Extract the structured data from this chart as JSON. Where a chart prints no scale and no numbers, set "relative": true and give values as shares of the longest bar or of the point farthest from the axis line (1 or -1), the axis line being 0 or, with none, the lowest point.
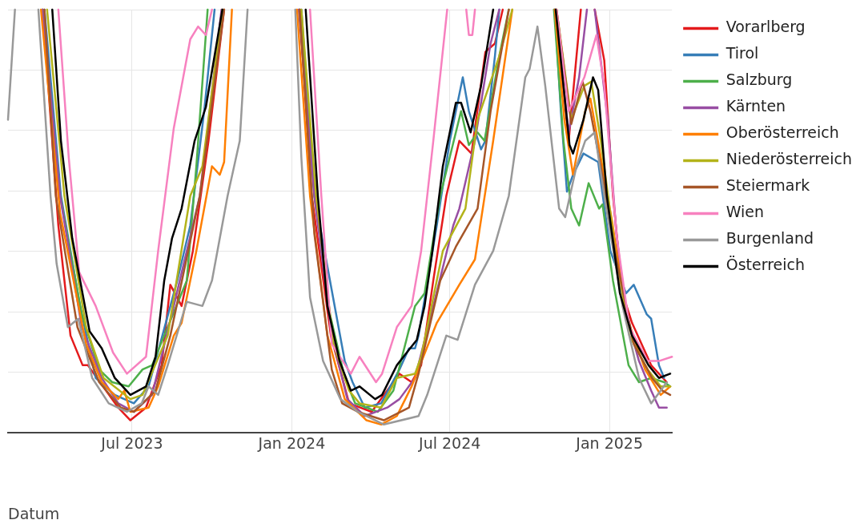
{
  "chart_data": {
    "type": "line",
    "relative": true,
    "xlabel": "Datum",
    "legend": "top right",
    "grid": true,
    "marker": "none",
    "line_style": "solid",
    "xlim": [
      "2023-02-08",
      "2025-03-14"
    ],
    "xticks": [
      {
        "value": "2023-07-01",
        "label": "Jul 2023"
      },
      {
        "value": "2024-01-01",
        "label": "Jan 2024"
      },
      {
        "value": "2024-07-01",
        "label": "Jul 2024"
      },
      {
        "value": "2025-01-01",
        "label": "Jan 2025"
      }
    ],
    "series": [
      {
        "name": "Vorarlberg",
        "color": "#e41a1c",
        "x": [
          "2023-03-20",
          "2023-04-07",
          "2023-04-21",
          "2023-05-05",
          "2023-05-11",
          "2023-06-15",
          "2023-06-29",
          "2023-07-17",
          "2023-08-04",
          "2023-08-14",
          "2023-08-27",
          "2023-09-09",
          "2023-09-27",
          "2023-10-15",
          "2023-12-01",
          "2024-01-10",
          "2024-01-24",
          "2024-02-15",
          "2024-03-07",
          "2024-04-02",
          "2024-05-04",
          "2024-05-18",
          "2024-05-29",
          "2024-06-12",
          "2024-06-27",
          "2024-07-12",
          "2024-07-26",
          "2024-08-11",
          "2024-08-22",
          "2024-08-31",
          "2024-10-01",
          "2024-10-31",
          "2024-11-15",
          "2024-11-24",
          "2024-11-29",
          "2024-12-07",
          "2024-12-15",
          "2024-12-26",
          "2025-01-05",
          "2025-01-16",
          "2025-01-27",
          "2025-02-18",
          "2025-03-08"
        ],
        "values": [
          1.0,
          0.49,
          0.23,
          0.16,
          0.16,
          0.06,
          0.03,
          0.06,
          0.16,
          0.35,
          0.3,
          0.43,
          0.69,
          1.0,
          null,
          1.0,
          0.56,
          0.23,
          0.07,
          0.05,
          0.14,
          0.12,
          0.16,
          0.36,
          0.56,
          0.69,
          0.66,
          0.9,
          0.92,
          1.0,
          null,
          1.0,
          0.69,
          0.89,
          1.0,
          null,
          1.0,
          0.88,
          0.56,
          0.33,
          0.26,
          0.16,
          0.12
        ]
      },
      {
        "name": "Tirol",
        "color": "#377eb8",
        "x": [
          "2023-03-22",
          "2023-04-10",
          "2023-05-02",
          "2023-05-20",
          "2023-06-11",
          "2023-07-03",
          "2023-07-20",
          "2023-08-22",
          "2023-09-06",
          "2023-09-22",
          "2023-10-04",
          "2023-12-01",
          "2024-01-12",
          "2024-01-27",
          "2024-03-02",
          "2024-03-11",
          "2024-03-25",
          "2024-04-13",
          "2024-05-04",
          "2024-05-15",
          "2024-05-22",
          "2024-05-26",
          "2024-06-16",
          "2024-07-01",
          "2024-07-16",
          "2024-07-23",
          "2024-08-06",
          "2024-08-11",
          "2024-08-22",
          "2024-08-27",
          "2024-10-01",
          "2024-10-30",
          "2024-11-06",
          "2024-11-13",
          "2024-11-20",
          "2024-12-02",
          "2024-12-19",
          "2025-01-02",
          "2025-01-20",
          "2025-01-29",
          "2025-02-13",
          "2025-02-18",
          "2025-02-27",
          "2025-03-05"
        ],
        "values": [
          1.0,
          0.56,
          0.3,
          0.13,
          0.09,
          0.07,
          0.11,
          0.36,
          0.49,
          0.76,
          1.0,
          null,
          1.0,
          0.56,
          0.17,
          0.12,
          0.06,
          0.07,
          0.15,
          0.2,
          0.2,
          0.23,
          0.49,
          0.69,
          0.84,
          0.76,
          0.67,
          0.69,
          0.89,
          1.0,
          null,
          1.0,
          0.76,
          0.57,
          0.61,
          0.66,
          0.64,
          0.43,
          0.33,
          0.35,
          0.28,
          0.27,
          0.16,
          0.13
        ]
      },
      {
        "name": "Salzburg",
        "color": "#4daf4a",
        "x": [
          "2023-03-20",
          "2023-04-09",
          "2023-05-04",
          "2023-05-24",
          "2023-06-08",
          "2023-06-27",
          "2023-07-13",
          "2023-07-24",
          "2023-09-02",
          "2023-09-13",
          "2023-09-26",
          "2023-12-01",
          "2024-01-10",
          "2024-01-27",
          "2024-02-14",
          "2024-03-02",
          "2024-03-14",
          "2024-04-09",
          "2024-04-27",
          "2024-05-22",
          "2024-06-02",
          "2024-06-20",
          "2024-07-14",
          "2024-07-23",
          "2024-08-02",
          "2024-08-10",
          "2024-08-27",
          "2024-09-07",
          "2024-10-01",
          "2024-10-29",
          "2024-11-09",
          "2024-11-18",
          "2024-11-27",
          "2024-12-08",
          "2024-12-20",
          "2024-12-24",
          "2025-01-05",
          "2025-01-23",
          "2025-02-04",
          "2025-02-18",
          "2025-03-05",
          "2025-03-12"
        ],
        "values": [
          1.0,
          0.56,
          0.28,
          0.15,
          0.12,
          0.11,
          0.15,
          0.16,
          0.36,
          0.63,
          1.0,
          null,
          1.0,
          0.56,
          0.28,
          0.13,
          0.07,
          0.05,
          0.1,
          0.3,
          0.33,
          0.56,
          0.76,
          0.68,
          0.71,
          0.69,
          0.89,
          1.0,
          null,
          1.0,
          0.69,
          0.53,
          0.49,
          0.59,
          0.53,
          0.54,
          0.36,
          0.16,
          0.12,
          0.13,
          0.12,
          0.11
        ]
      },
      {
        "name": "Kärnten",
        "color": "#984ea3",
        "x": [
          "2023-03-20",
          "2023-04-09",
          "2023-05-04",
          "2023-05-27",
          "2023-06-15",
          "2023-07-03",
          "2023-07-24",
          "2023-08-18",
          "2023-09-17",
          "2023-10-12",
          "2023-12-01",
          "2024-01-09",
          "2024-01-27",
          "2024-02-16",
          "2024-03-05",
          "2024-03-25",
          "2024-04-20",
          "2024-05-04",
          "2024-05-22",
          "2024-06-12",
          "2024-07-05",
          "2024-07-12",
          "2024-07-30",
          "2024-08-17",
          "2024-08-27",
          "2024-10-01",
          "2024-10-30",
          "2024-11-15",
          "2024-11-27",
          "2024-12-06",
          "2024-12-10",
          "2024-12-15",
          "2024-12-30",
          "2025-01-09",
          "2025-01-20",
          "2025-02-04",
          "2025-02-18",
          "2025-02-27",
          "2025-03-08"
        ],
        "values": [
          1.0,
          0.56,
          0.25,
          0.13,
          0.07,
          0.05,
          0.09,
          0.3,
          0.56,
          1.0,
          null,
          1.0,
          0.56,
          0.23,
          0.08,
          0.04,
          0.06,
          0.08,
          0.13,
          0.3,
          0.49,
          0.53,
          0.69,
          0.92,
          1.0,
          null,
          1.0,
          0.71,
          0.84,
          1.0,
          null,
          1.0,
          0.74,
          0.47,
          0.28,
          0.17,
          0.1,
          0.06,
          0.06
        ]
      },
      {
        "name": "Oberösterreich",
        "color": "#ff7f00",
        "x": [
          "2023-03-18",
          "2023-04-09",
          "2023-05-09",
          "2023-05-27",
          "2023-06-15",
          "2023-06-22",
          "2023-06-29",
          "2023-07-20",
          "2023-07-31",
          "2023-08-18",
          "2023-08-27",
          "2023-09-13",
          "2023-10-01",
          "2023-10-10",
          "2023-10-15",
          "2023-10-24",
          "2023-12-01",
          "2024-01-07",
          "2024-01-22",
          "2024-02-11",
          "2024-03-02",
          "2024-03-27",
          "2024-04-13",
          "2024-05-01",
          "2024-05-18",
          "2024-06-16",
          "2024-07-12",
          "2024-07-30",
          "2024-08-20",
          "2024-09-11",
          "2024-10-01",
          "2024-10-30",
          "2024-11-10",
          "2024-11-20",
          "2024-12-04",
          "2024-12-10",
          "2025-01-04",
          "2025-01-20",
          "2025-02-11",
          "2025-03-01",
          "2025-03-12"
        ],
        "values": [
          1.0,
          0.52,
          0.21,
          0.12,
          0.08,
          0.1,
          0.05,
          0.06,
          0.11,
          0.23,
          0.26,
          0.43,
          0.63,
          0.61,
          0.64,
          1.0,
          null,
          1.0,
          0.56,
          0.23,
          0.08,
          0.03,
          0.02,
          0.04,
          0.11,
          0.26,
          0.35,
          0.41,
          0.69,
          1.0,
          null,
          1.0,
          0.74,
          0.61,
          0.76,
          0.79,
          0.5,
          0.28,
          0.15,
          0.09,
          0.11
        ]
      },
      {
        "name": "Niederösterreich",
        "color": "#b3b31a",
        "x": [
          "2023-03-25",
          "2023-04-14",
          "2023-05-09",
          "2023-05-29",
          "2023-06-29",
          "2023-07-13",
          "2023-08-11",
          "2023-09-06",
          "2023-09-20",
          "2023-10-13",
          "2023-12-01",
          "2024-01-12",
          "2024-01-29",
          "2024-02-18",
          "2024-03-07",
          "2024-03-19",
          "2024-04-13",
          "2024-05-01",
          "2024-05-22",
          "2024-05-29",
          "2024-06-23",
          "2024-07-19",
          "2024-08-02",
          "2024-08-27",
          "2024-09-11",
          "2024-10-01",
          "2024-11-01",
          "2024-11-18",
          "2024-12-03",
          "2024-12-11",
          "2024-12-22",
          "2025-01-09",
          "2025-01-24",
          "2025-02-14",
          "2025-03-01",
          "2025-03-12"
        ],
        "values": [
          1.0,
          0.56,
          0.25,
          0.13,
          0.08,
          0.09,
          0.23,
          0.56,
          0.63,
          1.0,
          null,
          1.0,
          0.56,
          0.21,
          0.1,
          0.07,
          0.06,
          0.13,
          0.14,
          0.18,
          0.43,
          0.53,
          0.74,
          0.89,
          1.0,
          null,
          1.0,
          0.74,
          0.82,
          0.83,
          0.69,
          0.41,
          0.23,
          0.15,
          0.11,
          0.11
        ]
      },
      {
        "name": "Steiermark",
        "color": "#a65628",
        "x": [
          "2023-03-22",
          "2023-04-04",
          "2023-04-29",
          "2023-05-24",
          "2023-06-18",
          "2023-07-03",
          "2023-07-28",
          "2023-08-14",
          "2023-09-17",
          "2023-10-15",
          "2023-12-01",
          "2024-01-10",
          "2024-01-27",
          "2024-02-16",
          "2024-02-28",
          "2024-03-17",
          "2024-04-16",
          "2024-05-15",
          "2024-05-26",
          "2024-06-20",
          "2024-07-08",
          "2024-08-02",
          "2024-08-17",
          "2024-09-07",
          "2024-10-01",
          "2024-11-01",
          "2024-11-18",
          "2024-12-01",
          "2024-12-10",
          "2024-12-22",
          "2025-01-09",
          "2025-01-29",
          "2025-02-19",
          "2025-03-03",
          "2025-03-12"
        ],
        "values": [
          1.0,
          0.56,
          0.25,
          0.12,
          0.06,
          0.05,
          0.1,
          0.23,
          0.56,
          1.0,
          null,
          1.0,
          0.47,
          0.15,
          0.07,
          0.05,
          0.03,
          0.06,
          0.14,
          0.36,
          0.44,
          0.53,
          0.76,
          1.0,
          null,
          1.0,
          0.73,
          0.83,
          0.76,
          0.63,
          0.41,
          0.21,
          0.13,
          0.1,
          0.09
        ]
      },
      {
        "name": "Wien",
        "color": "#f781bf",
        "x": [
          "2023-04-07",
          "2023-04-19",
          "2023-05-01",
          "2023-05-20",
          "2023-06-09",
          "2023-06-25",
          "2023-07-17",
          "2023-07-31",
          "2023-08-18",
          "2023-09-06",
          "2023-09-15",
          "2023-09-24",
          "2023-10-01",
          "2023-12-01",
          "2024-01-22",
          "2024-02-04",
          "2024-02-16",
          "2024-03-09",
          "2024-03-19",
          "2024-04-07",
          "2024-04-14",
          "2024-05-01",
          "2024-05-18",
          "2024-05-29",
          "2024-06-12",
          "2024-06-28",
          "2024-07-10",
          "2024-07-20",
          "2024-07-23",
          "2024-07-27",
          "2024-07-30",
          "2024-09-15",
          "2024-11-01",
          "2024-11-15",
          "2024-12-03",
          "2024-12-17",
          "2024-12-26",
          "2025-01-09",
          "2025-01-24",
          "2025-02-14",
          "2025-02-27",
          "2025-03-14"
        ],
        "values": [
          1.0,
          0.65,
          0.38,
          0.3,
          0.19,
          0.14,
          0.18,
          0.43,
          0.72,
          0.93,
          0.96,
          0.94,
          1.0,
          null,
          1.0,
          0.56,
          0.21,
          0.14,
          0.18,
          0.12,
          0.14,
          0.25,
          0.3,
          0.43,
          0.69,
          1.0,
          null,
          1.0,
          0.94,
          0.94,
          1.0,
          null,
          1.0,
          0.76,
          0.84,
          0.94,
          0.82,
          0.47,
          0.25,
          0.17,
          0.17,
          0.18
        ]
      },
      {
        "name": "Burgenland",
        "color": "#999999",
        "x": [
          "2023-02-08",
          "2023-02-16",
          "2023-03-01",
          "2023-03-15",
          "2023-03-29",
          "2023-04-05",
          "2023-04-18",
          "2023-04-30",
          "2023-05-16",
          "2023-06-04",
          "2023-06-25",
          "2023-07-12",
          "2023-07-20",
          "2023-07-31",
          "2023-08-11",
          "2023-09-02",
          "2023-09-20",
          "2023-10-01",
          "2023-10-19",
          "2023-11-02",
          "2023-11-11",
          "2023-12-10",
          "2024-01-05",
          "2024-01-12",
          "2024-01-22",
          "2024-02-06",
          "2024-02-26",
          "2024-03-17",
          "2024-04-16",
          "2024-05-26",
          "2024-06-05",
          "2024-06-27",
          "2024-07-10",
          "2024-07-30",
          "2024-08-20",
          "2024-09-07",
          "2024-09-26",
          "2024-10-01",
          "2024-10-10",
          "2024-10-19",
          "2024-11-04",
          "2024-11-11",
          "2024-11-24",
          "2024-12-04",
          "2024-12-15",
          "2024-12-26",
          "2025-01-16",
          "2025-02-04",
          "2025-02-18",
          "2025-03-01",
          "2025-03-08"
        ],
        "values": [
          0.74,
          1.0,
          null,
          1.0,
          0.56,
          0.4,
          0.25,
          0.27,
          0.13,
          0.07,
          0.05,
          0.07,
          0.11,
          0.09,
          0.16,
          0.31,
          0.3,
          0.36,
          0.56,
          0.69,
          1.0,
          null,
          1.0,
          0.65,
          0.32,
          0.17,
          0.08,
          0.05,
          0.02,
          0.04,
          0.09,
          0.23,
          0.22,
          0.35,
          0.43,
          0.56,
          0.84,
          0.86,
          0.96,
          0.82,
          0.53,
          0.51,
          0.63,
          0.69,
          0.71,
          0.56,
          0.3,
          0.13,
          0.07,
          0.1,
          0.12
        ]
      },
      {
        "name": "Österreich",
        "color": "#000000",
        "x": [
          "2023-03-31",
          "2023-04-10",
          "2023-04-23",
          "2023-05-13",
          "2023-05-27",
          "2023-06-11",
          "2023-06-29",
          "2023-07-17",
          "2023-07-28",
          "2023-08-07",
          "2023-08-16",
          "2023-08-27",
          "2023-09-11",
          "2023-09-24",
          "2023-10-13",
          "2023-12-01",
          "2024-01-17",
          "2024-01-31",
          "2024-02-11",
          "2024-02-25",
          "2024-03-09",
          "2024-03-19",
          "2024-04-06",
          "2024-04-14",
          "2024-05-01",
          "2024-05-24",
          "2024-06-02",
          "2024-06-11",
          "2024-06-23",
          "2024-07-08",
          "2024-07-14",
          "2024-07-25",
          "2024-08-06",
          "2024-08-20",
          "2024-09-25",
          "2024-10-31",
          "2024-11-09",
          "2024-11-16",
          "2024-11-20",
          "2024-12-02",
          "2024-12-13",
          "2024-12-19",
          "2024-12-29",
          "2025-01-13",
          "2025-01-27",
          "2025-02-15",
          "2025-02-27",
          "2025-03-12"
        ],
        "values": [
          1.0,
          0.69,
          0.46,
          0.24,
          0.2,
          0.13,
          0.09,
          0.11,
          0.18,
          0.36,
          0.46,
          0.53,
          0.69,
          0.77,
          1.0,
          null,
          1.0,
          0.56,
          0.3,
          0.17,
          0.1,
          0.11,
          0.08,
          0.09,
          0.16,
          0.22,
          0.3,
          0.43,
          0.63,
          0.78,
          0.78,
          0.71,
          0.82,
          1.0,
          null,
          1.0,
          0.82,
          0.68,
          0.66,
          0.74,
          0.84,
          0.81,
          0.56,
          0.33,
          0.23,
          0.16,
          0.13,
          0.14
        ]
      }
    ]
  }
}
